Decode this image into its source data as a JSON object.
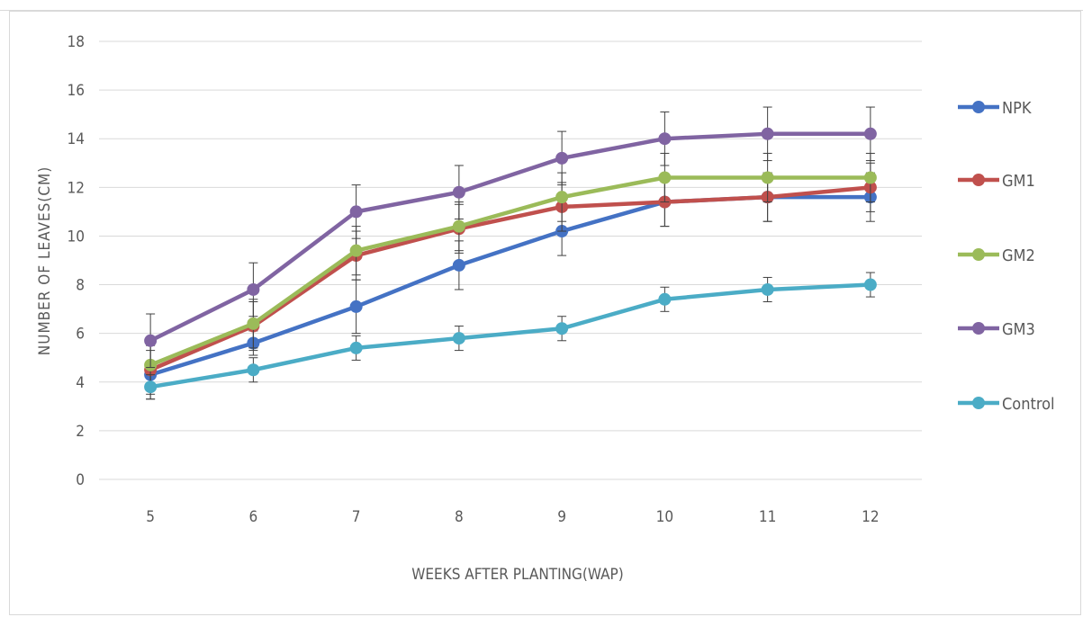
{
  "chart_data": {
    "type": "line",
    "title": "",
    "xlabel": "WEEKS AFTER PLANTING(WAP)",
    "ylabel": "NUMBER OF LEAVES(CM)",
    "categories": [
      "5",
      "6",
      "7",
      "8",
      "9",
      "10",
      "11",
      "12"
    ],
    "ylim": [
      0,
      18
    ],
    "yticks": [
      0,
      2,
      4,
      6,
      8,
      10,
      12,
      14,
      16,
      18
    ],
    "grid": true,
    "legend_position": "right",
    "error_bars": true,
    "series": [
      {
        "name": "NPK",
        "color": "#4472c4",
        "values": [
          4.3,
          5.6,
          7.1,
          8.8,
          10.2,
          11.4,
          11.6,
          11.6
        ],
        "error": [
          1.0,
          0.5,
          1.1,
          1.0,
          1.0,
          1.0,
          1.0,
          1.0
        ]
      },
      {
        "name": "GM1",
        "color": "#c0504d",
        "values": [
          4.5,
          6.3,
          9.2,
          10.3,
          11.2,
          11.4,
          11.6,
          12.0
        ],
        "error": [
          1.0,
          1.0,
          1.0,
          1.0,
          1.0,
          1.0,
          1.0,
          1.0
        ]
      },
      {
        "name": "GM2",
        "color": "#9bbb59",
        "values": [
          4.7,
          6.4,
          9.4,
          10.4,
          11.6,
          12.4,
          12.4,
          12.4
        ],
        "error": [
          1.0,
          1.0,
          1.0,
          1.0,
          1.0,
          1.0,
          1.0,
          1.0
        ]
      },
      {
        "name": "GM3",
        "color": "#8064a2",
        "values": [
          5.7,
          7.8,
          11.0,
          11.8,
          13.2,
          14.0,
          14.2,
          14.2
        ],
        "error": [
          1.1,
          1.1,
          1.1,
          1.1,
          1.1,
          1.1,
          1.1,
          1.1
        ]
      },
      {
        "name": "Control",
        "color": "#4bacc6",
        "values": [
          3.8,
          4.5,
          5.4,
          5.8,
          6.2,
          7.4,
          7.8,
          8.0
        ],
        "error": [
          0.5,
          0.5,
          0.5,
          0.5,
          0.5,
          0.5,
          0.5,
          0.5
        ]
      }
    ]
  }
}
